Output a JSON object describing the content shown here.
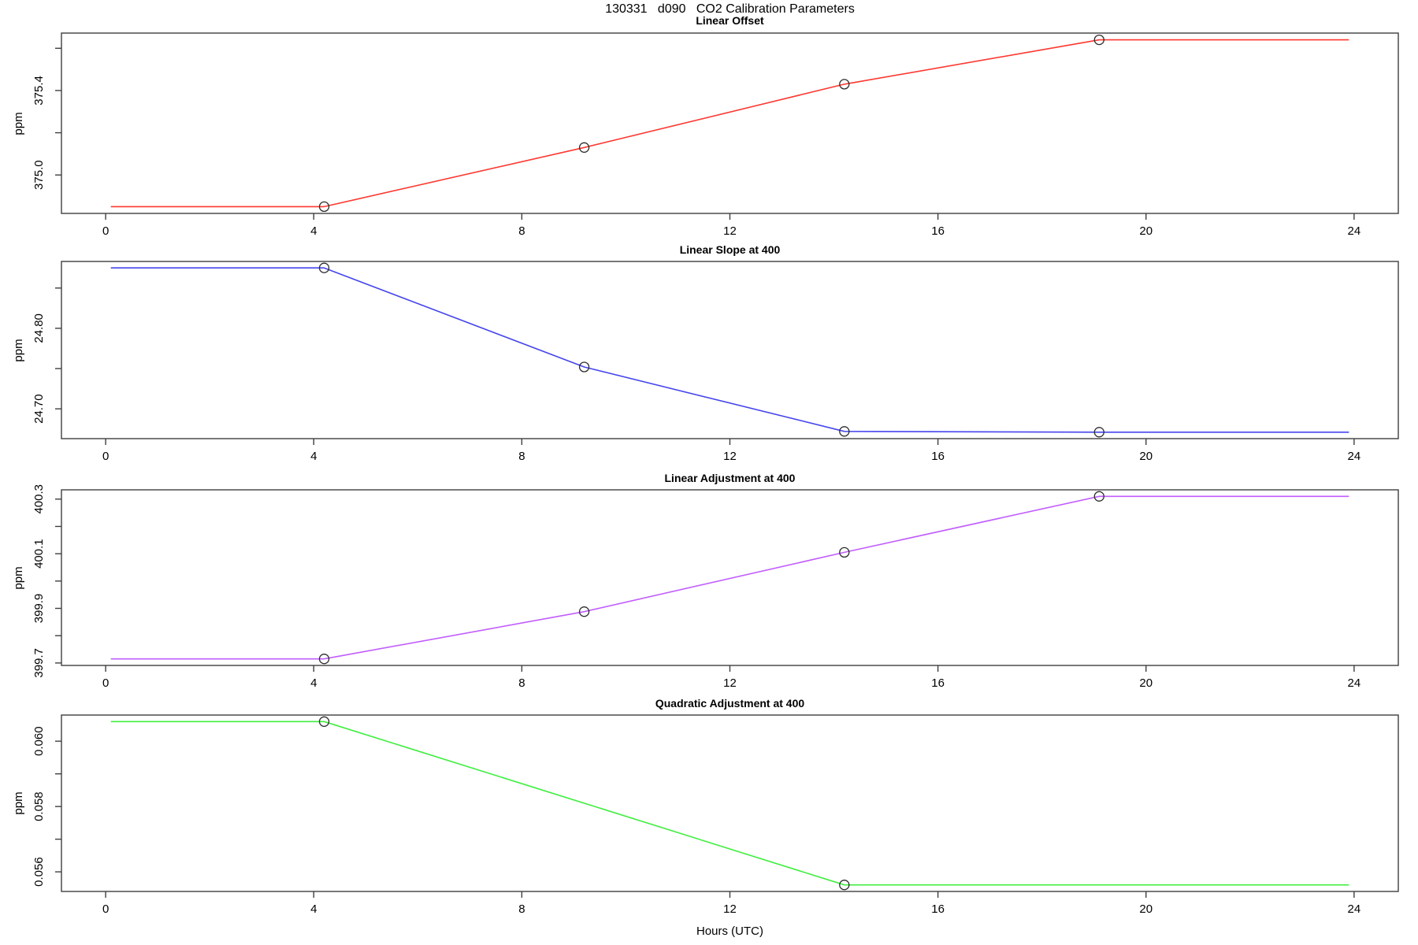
{
  "figure": {
    "title": "130331   d090   CO2 Calibration Parameters",
    "xlabel": "Hours (UTC)"
  },
  "colors": {
    "background": "#ffffff",
    "box": "#3f3f3f",
    "tick": "#3f3f3f",
    "marker": "#2b2b2b",
    "text": "#000000"
  },
  "chart_data": [
    {
      "type": "line",
      "title": "Linear Offset",
      "ylabel": "ppm",
      "color": "#ff3830",
      "xlim": [
        -0.85,
        24.85
      ],
      "ylim": [
        374.818,
        375.672
      ],
      "xticks": [
        0,
        4,
        8,
        12,
        16,
        20,
        24
      ],
      "yticks": [
        {
          "v": 375.0,
          "label": "375.0"
        },
        {
          "v": 375.2,
          "label": ""
        },
        {
          "v": 375.4,
          "label": "375.4"
        },
        {
          "v": 375.6,
          "label": ""
        }
      ],
      "line": [
        [
          0.1,
          374.85
        ],
        [
          4.2,
          374.85
        ],
        [
          9.2,
          375.13
        ],
        [
          14.2,
          375.43
        ],
        [
          19.1,
          375.64
        ],
        [
          23.9,
          375.64
        ]
      ],
      "points": [
        [
          4.2,
          374.85
        ],
        [
          9.2,
          375.13
        ],
        [
          14.2,
          375.43
        ],
        [
          19.1,
          375.64
        ]
      ]
    },
    {
      "type": "line",
      "title": "Linear Slope at 400",
      "ylabel": "ppm",
      "color": "#4545ee",
      "xlim": [
        -0.85,
        24.85
      ],
      "ylim": [
        24.663,
        24.883
      ],
      "xticks": [
        0,
        4,
        8,
        12,
        16,
        20,
        24
      ],
      "yticks": [
        {
          "v": 24.7,
          "label": "24.70"
        },
        {
          "v": 24.75,
          "label": ""
        },
        {
          "v": 24.8,
          "label": "24.80"
        },
        {
          "v": 24.85,
          "label": ""
        }
      ],
      "line": [
        [
          0.1,
          24.875
        ],
        [
          4.2,
          24.875
        ],
        [
          9.2,
          24.752
        ],
        [
          14.2,
          24.672
        ],
        [
          19.1,
          24.671
        ],
        [
          23.9,
          24.671
        ]
      ],
      "points": [
        [
          4.2,
          24.875
        ],
        [
          9.2,
          24.752
        ],
        [
          14.2,
          24.672
        ],
        [
          19.1,
          24.671
        ]
      ]
    },
    {
      "type": "line",
      "title": "Linear Adjustment at 400",
      "ylabel": "ppm",
      "color": "#c25dff",
      "xlim": [
        -0.85,
        24.85
      ],
      "ylim": [
        399.691,
        400.334
      ],
      "xticks": [
        0,
        4,
        8,
        12,
        16,
        20,
        24
      ],
      "yticks": [
        {
          "v": 399.7,
          "label": "399.7"
        },
        {
          "v": 399.8,
          "label": ""
        },
        {
          "v": 399.9,
          "label": "399.9"
        },
        {
          "v": 400.0,
          "label": ""
        },
        {
          "v": 400.1,
          "label": "400.1"
        },
        {
          "v": 400.2,
          "label": ""
        },
        {
          "v": 400.3,
          "label": "400.3"
        }
      ],
      "line": [
        [
          0.1,
          399.715
        ],
        [
          4.2,
          399.715
        ],
        [
          9.2,
          399.888
        ],
        [
          14.2,
          400.105
        ],
        [
          19.1,
          400.31
        ],
        [
          23.9,
          400.31
        ]
      ],
      "points": [
        [
          4.2,
          399.715
        ],
        [
          9.2,
          399.888
        ],
        [
          14.2,
          400.105
        ],
        [
          19.1,
          400.31
        ]
      ]
    },
    {
      "type": "line",
      "title": "Quadratic Adjustment at 400",
      "ylabel": "ppm",
      "color": "#3fef3f",
      "xlim": [
        -0.85,
        24.85
      ],
      "ylim": [
        0.0554,
        0.0608
      ],
      "xticks": [
        0,
        4,
        8,
        12,
        16,
        20,
        24
      ],
      "yticks": [
        {
          "v": 0.056,
          "label": "0.056"
        },
        {
          "v": 0.057,
          "label": ""
        },
        {
          "v": 0.058,
          "label": "0.058"
        },
        {
          "v": 0.059,
          "label": ""
        },
        {
          "v": 0.06,
          "label": "0.060"
        }
      ],
      "line": [
        [
          0.1,
          0.0606
        ],
        [
          4.2,
          0.0606
        ],
        [
          14.2,
          0.0556
        ],
        [
          23.9,
          0.0556
        ]
      ],
      "points": [
        [
          4.2,
          0.0606
        ],
        [
          14.2,
          0.0556
        ]
      ]
    }
  ]
}
